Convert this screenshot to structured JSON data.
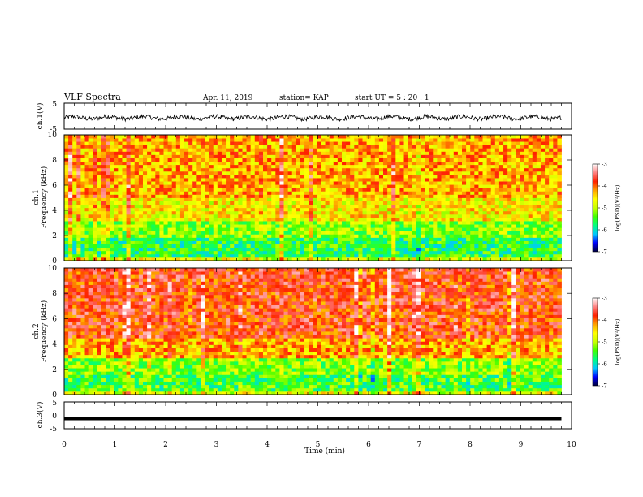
{
  "header": {
    "title": "VLF Spectra",
    "date": "Apr. 11, 2019",
    "station": "station= KAP",
    "start_ut": "start UT =  5 : 20 : 1"
  },
  "colors": {
    "colormap": [
      "#000040",
      "#0000ff",
      "#00c8ff",
      "#00ff80",
      "#40ff00",
      "#c8ff00",
      "#ffff00",
      "#ffa000",
      "#ff2000",
      "#ff8080",
      "#ffffff"
    ],
    "waveform": "#000000"
  },
  "chart_data": [
    {
      "type": "line",
      "panel": "ch1-waveform",
      "ylabel": "ch.1(V)",
      "ylim": [
        -5,
        5
      ],
      "yticks": [
        "5",
        "-5"
      ],
      "xlim": [
        0,
        10
      ],
      "x_data_end": 9.8,
      "mean": -0.6,
      "amplitude": 1.2
    },
    {
      "type": "heatmap",
      "panel": "ch1-spectrogram",
      "ylabel": [
        "ch.1",
        "Frequency (kHz)"
      ],
      "ylim": [
        0,
        10
      ],
      "yticks": [
        "0",
        "2",
        "4",
        "6",
        "8",
        "10"
      ],
      "xlim": [
        0,
        10
      ],
      "x_data_end": 9.8,
      "band_profile": [
        {
          "f_max": 0.3,
          "level": 0.55
        },
        {
          "f_max": 1.8,
          "level": 0.35
        },
        {
          "f_max": 3.2,
          "level": 0.45
        },
        {
          "f_max": 5.0,
          "level": 0.6
        },
        {
          "f_max": 10.0,
          "level": 0.68
        }
      ],
      "colorbar": {
        "label": "log(PSD)(V²/Hz)",
        "ticks": [
          "-3",
          "-4",
          "-5",
          "-6",
          "-7"
        ],
        "range": [
          -7,
          -3
        ]
      }
    },
    {
      "type": "heatmap",
      "panel": "ch2-spectrogram",
      "ylabel": [
        "ch.2",
        "Frequency (kHz)"
      ],
      "ylim": [
        0,
        10
      ],
      "yticks": [
        "0",
        "2",
        "4",
        "6",
        "8",
        "10"
      ],
      "xlim": [
        0,
        10
      ],
      "x_data_end": 9.8,
      "band_profile": [
        {
          "f_max": 0.3,
          "level": 0.55
        },
        {
          "f_max": 1.6,
          "level": 0.38
        },
        {
          "f_max": 3.0,
          "level": 0.45
        },
        {
          "f_max": 4.5,
          "level": 0.68
        },
        {
          "f_max": 10.0,
          "level": 0.8
        }
      ],
      "colorbar": {
        "label": "log(PSD)(V²/Hz)",
        "ticks": [
          "-3",
          "-4",
          "-5",
          "-6",
          "-7"
        ],
        "range": [
          -7,
          -3
        ]
      }
    },
    {
      "type": "line",
      "panel": "ch3-waveform",
      "ylabel": "ch.3(V)",
      "ylim": [
        -5,
        5
      ],
      "yticks": [
        "5",
        "0",
        "-5"
      ],
      "xlim": [
        0,
        10
      ],
      "x_data_end": 9.8,
      "mean": -1.2,
      "amplitude": 0.15,
      "xlabel": "Time (min)",
      "xticks": [
        "0",
        "1",
        "2",
        "3",
        "4",
        "5",
        "6",
        "7",
        "8",
        "9",
        "10"
      ]
    }
  ]
}
